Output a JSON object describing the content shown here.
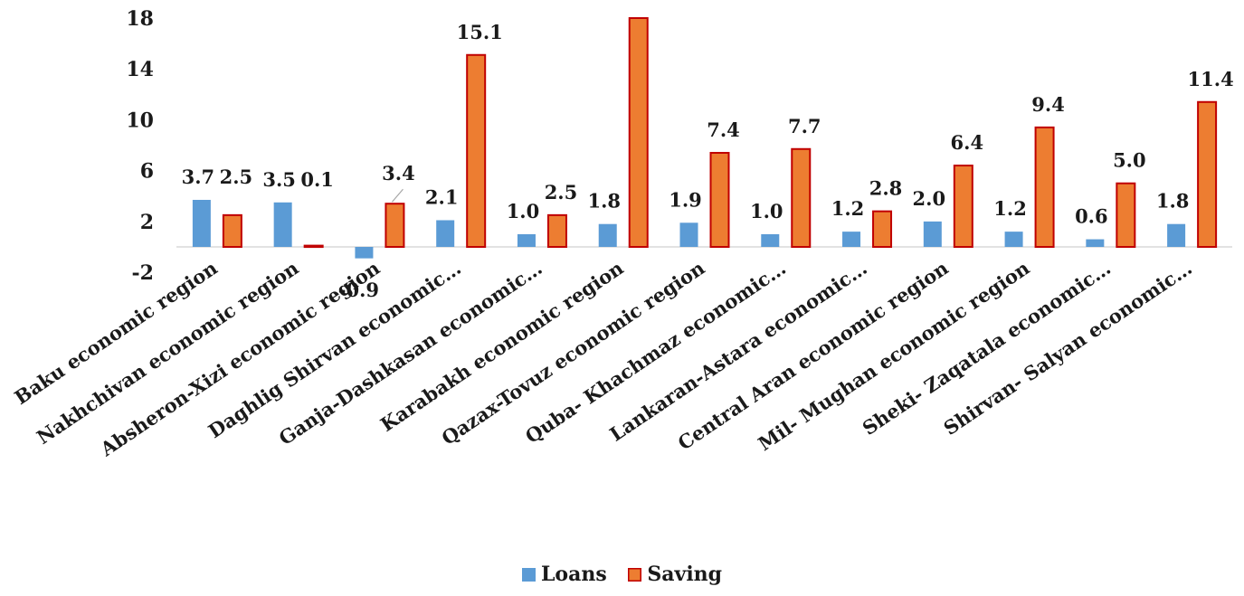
{
  "chart_data": {
    "type": "bar",
    "categories": [
      "Baku economic region",
      "Nakhchivan economic region",
      "Absheron-Xizi economic region",
      "Daghlig Shirvan economic…",
      "Ganja-Dashkasan economic…",
      "Karabakh economic region",
      "Qazax-Tovuz economic region",
      "Quba- Khachmaz economic…",
      "Lankaran-Astara economic…",
      "Central Aran economic region",
      "Mil- Mughan economic region",
      "Sheki- Zaqatala economic…",
      "Shirvan- Salyan economic…"
    ],
    "series": [
      {
        "name": "Loans",
        "color": "#5B9BD5",
        "values": [
          3.7,
          3.5,
          -0.9,
          2.1,
          1.0,
          1.8,
          1.9,
          1.0,
          1.2,
          2.0,
          1.2,
          0.6,
          1.8
        ],
        "labels": [
          "3.7",
          "3.5",
          "-0.9",
          "2.1",
          "1.0",
          "1.8",
          "1.9",
          "1.0",
          "1.2",
          "2.0",
          "1.2",
          "0.6",
          "1.8"
        ]
      },
      {
        "name": "Saving",
        "color": "#ED7D31",
        "edge_color": "#C00000",
        "values": [
          2.5,
          0.1,
          3.4,
          15.1,
          2.5,
          18.0,
          7.4,
          7.7,
          2.8,
          6.4,
          9.4,
          5.0,
          11.4
        ],
        "labels": [
          "2.5",
          "0.1",
          "3.4",
          "15.1",
          "2.5",
          "",
          "7.4",
          "7.7",
          "2.8",
          "6.4",
          "9.4",
          "5.0",
          "11.4"
        ]
      }
    ],
    "yticks": [
      "-2",
      "2",
      "6",
      "10",
      "14",
      "18"
    ],
    "ylim": [
      -2,
      18
    ],
    "legend_position": "bottom"
  }
}
